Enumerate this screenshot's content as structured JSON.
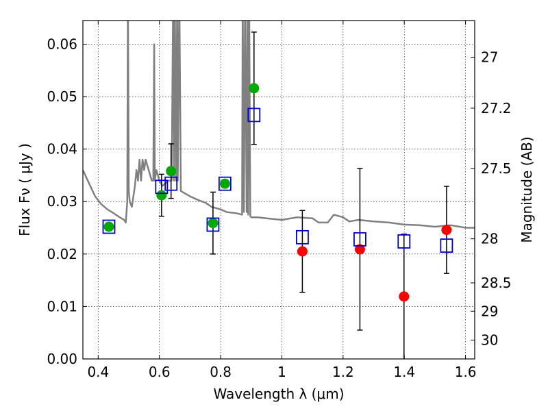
{
  "chart_data": {
    "type": "scatter",
    "xlabel": "Wavelength  λ (μm)",
    "ylabel": "Flux  Fν  ( μJy )",
    "ylabel_right": "Magnitude (AB)",
    "xlim": [
      0.35,
      1.63
    ],
    "ylim": [
      0.0,
      0.0645
    ],
    "x_ticks": [
      0.4,
      0.6,
      0.8,
      1.0,
      1.2,
      1.4,
      1.6
    ],
    "x_tick_labels": [
      "0.4",
      "0.6",
      "0.8",
      "1",
      "1.2",
      "1.4",
      "1.6"
    ],
    "y_ticks": [
      0.0,
      0.01,
      0.02,
      0.03,
      0.04,
      0.05,
      0.06
    ],
    "y_tick_labels": [
      "0.00",
      "0.01",
      "0.02",
      "0.03",
      "0.04",
      "0.05",
      "0.06"
    ],
    "right_ticks": [
      {
        "label": "27",
        "flux": 0.0575
      },
      {
        "label": "27.2",
        "flux": 0.0478
      },
      {
        "label": "27.5",
        "flux": 0.0363
      },
      {
        "label": "28",
        "flux": 0.0229
      },
      {
        "label": "28.5",
        "flux": 0.0145
      },
      {
        "label": "29",
        "flux": 0.0091
      },
      {
        "label": "30",
        "flux": 0.0036
      }
    ],
    "grid": true,
    "colors": {
      "model": "#808080",
      "model_photometry": "#0000cc",
      "detected": "#00aa00",
      "measured": "#ff0000",
      "errorbar": "#000000"
    },
    "series": [
      {
        "name": "model spectrum",
        "style": "line",
        "x": [
          0.35,
          0.37,
          0.39,
          0.41,
          0.43,
          0.45,
          0.47,
          0.485,
          0.49,
          0.495,
          0.497,
          0.5,
          0.503,
          0.51,
          0.52,
          0.525,
          0.53,
          0.535,
          0.54,
          0.545,
          0.55,
          0.555,
          0.56,
          0.565,
          0.57,
          0.575,
          0.58,
          0.583,
          0.585,
          0.59,
          0.6,
          0.61,
          0.62,
          0.63,
          0.64,
          0.645,
          0.648,
          0.65,
          0.655,
          0.658,
          0.66,
          0.665,
          0.67,
          0.7,
          0.73,
          0.75,
          0.77,
          0.8,
          0.82,
          0.85,
          0.87,
          0.872,
          0.876,
          0.88,
          0.885,
          0.888,
          0.89,
          0.893,
          0.897,
          0.9,
          0.92,
          0.95,
          1.0,
          1.05,
          1.1,
          1.12,
          1.15,
          1.17,
          1.2,
          1.22,
          1.25,
          1.3,
          1.35,
          1.4,
          1.45,
          1.5,
          1.55,
          1.6,
          1.63
        ],
        "y": [
          0.036,
          0.0335,
          0.031,
          0.0295,
          0.0285,
          0.0278,
          0.027,
          0.0265,
          0.026,
          0.03,
          0.07,
          0.032,
          0.03,
          0.029,
          0.033,
          0.036,
          0.034,
          0.038,
          0.034,
          0.038,
          0.036,
          0.038,
          0.037,
          0.036,
          0.035,
          0.034,
          0.034,
          0.06,
          0.034,
          0.036,
          0.034,
          0.033,
          0.0335,
          0.034,
          0.034,
          0.07,
          0.034,
          0.07,
          0.034,
          0.07,
          0.034,
          0.07,
          0.032,
          0.031,
          0.0302,
          0.0298,
          0.029,
          0.0285,
          0.028,
          0.0278,
          0.0275,
          0.07,
          0.028,
          0.07,
          0.028,
          0.07,
          0.0275,
          0.07,
          0.0272,
          0.027,
          0.027,
          0.0268,
          0.0265,
          0.027,
          0.0268,
          0.026,
          0.026,
          0.0275,
          0.027,
          0.0262,
          0.0265,
          0.0262,
          0.026,
          0.0256,
          0.0255,
          0.0252,
          0.0255,
          0.025,
          0.025
        ]
      },
      {
        "name": "model photometry",
        "style": "open-square",
        "points": [
          {
            "x": 0.435,
            "y": 0.0252
          },
          {
            "x": 0.607,
            "y": 0.0328
          },
          {
            "x": 0.638,
            "y": 0.0334
          },
          {
            "x": 0.775,
            "y": 0.0256
          },
          {
            "x": 0.814,
            "y": 0.0334
          },
          {
            "x": 0.909,
            "y": 0.0465
          },
          {
            "x": 1.067,
            "y": 0.0232
          },
          {
            "x": 1.255,
            "y": 0.0228
          },
          {
            "x": 1.399,
            "y": 0.0224
          },
          {
            "x": 1.538,
            "y": 0.0216
          }
        ]
      },
      {
        "name": "detections",
        "style": "filled-circle-green",
        "points": [
          {
            "x": 0.435,
            "y": 0.0252,
            "err": null
          },
          {
            "x": 0.607,
            "y": 0.0312,
            "err": 0.004
          },
          {
            "x": 0.638,
            "y": 0.0358,
            "err": 0.0052
          },
          {
            "x": 0.775,
            "y": 0.0259,
            "err": 0.0059
          },
          {
            "x": 0.814,
            "y": 0.0334,
            "err": null
          },
          {
            "x": 0.909,
            "y": 0.0516,
            "err": 0.0107
          }
        ]
      },
      {
        "name": "measurements",
        "style": "filled-circle-red",
        "points": [
          {
            "x": 1.067,
            "y": 0.0205,
            "err": 0.0078
          },
          {
            "x": 1.255,
            "y": 0.0209,
            "err": 0.0154
          },
          {
            "x": 1.399,
            "y": 0.0119,
            "err": 0.0119
          },
          {
            "x": 1.538,
            "y": 0.0246,
            "err": 0.0083
          }
        ]
      }
    ]
  }
}
